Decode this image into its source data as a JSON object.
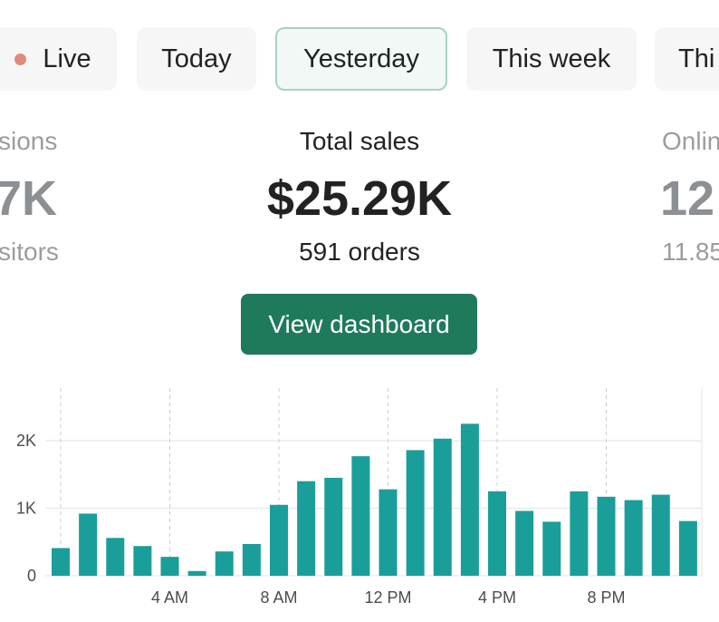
{
  "tabs": [
    {
      "label": "Live",
      "has_dot": true,
      "dot_color": "#e1897b"
    },
    {
      "label": "Today"
    },
    {
      "label": "Yesterday",
      "selected": true
    },
    {
      "label": "This week"
    },
    {
      "label": "Thi"
    }
  ],
  "metrics": {
    "left": {
      "label": "sions",
      "value": "7K",
      "sub": "sitors"
    },
    "center": {
      "label": "Total sales",
      "value": "$25.29K",
      "sub": "591 orders"
    },
    "right": {
      "label": "Onlin",
      "value": "12",
      "sub": "11.85"
    }
  },
  "button": {
    "label": "View dashboard",
    "color": "#1f7a5c"
  },
  "chart_data": {
    "type": "bar",
    "color": "#1a9e9a",
    "x": [
      0,
      1,
      2,
      3,
      4,
      5,
      6,
      7,
      8,
      9,
      10,
      11,
      12,
      13,
      14,
      15,
      16,
      17,
      18,
      19,
      20,
      21,
      22,
      23
    ],
    "values": [
      410,
      920,
      560,
      440,
      280,
      70,
      360,
      470,
      1050,
      1400,
      1450,
      1770,
      1280,
      1860,
      2030,
      2250,
      1250,
      960,
      800,
      1250,
      1170,
      1120,
      1200,
      810
    ],
    "ylim": [
      0,
      2500
    ],
    "yticks": [
      {
        "value": 0,
        "label": "0"
      },
      {
        "value": 1000,
        "label": "1K"
      },
      {
        "value": 2000,
        "label": "2K"
      }
    ],
    "xticks": [
      {
        "hour": 4,
        "label": "4 AM"
      },
      {
        "hour": 8,
        "label": "8 AM"
      },
      {
        "hour": 12,
        "label": "12 PM"
      },
      {
        "hour": 16,
        "label": "4 PM"
      },
      {
        "hour": 20,
        "label": "8 PM"
      }
    ],
    "vertical_dashed_gridlines_at_hours": [
      0,
      4,
      8,
      12,
      16,
      20
    ],
    "grid": true
  }
}
